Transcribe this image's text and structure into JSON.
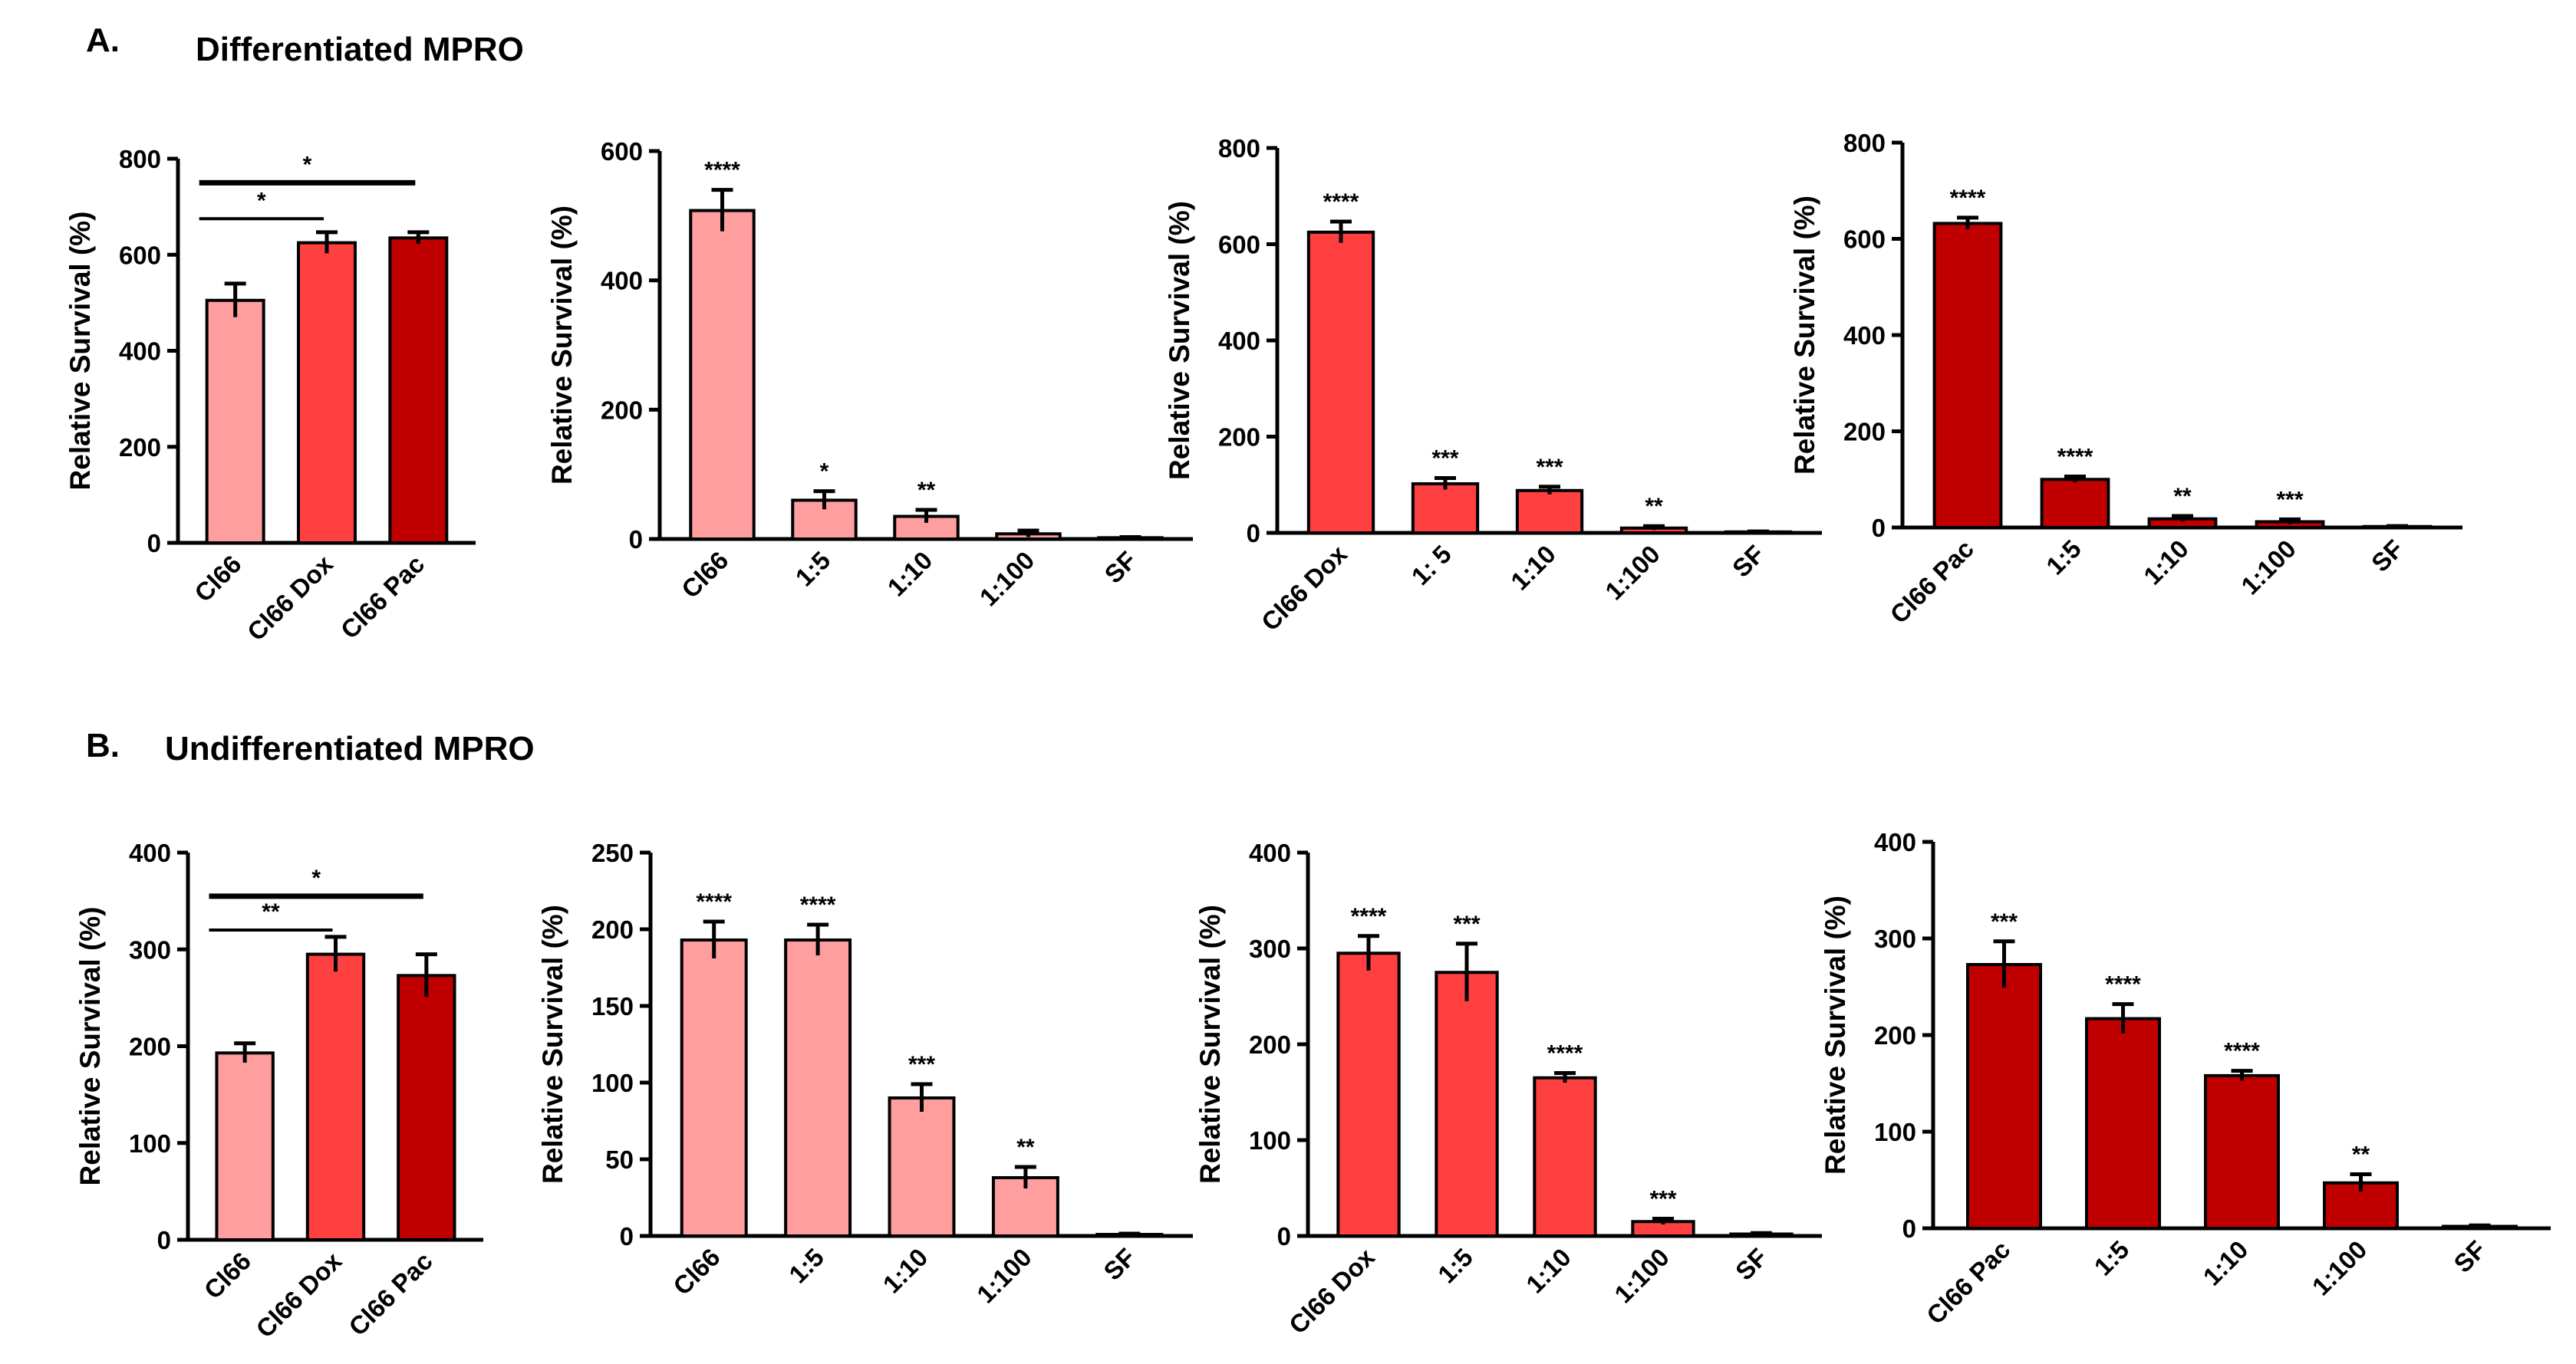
{
  "panels": [
    {
      "label": "A.",
      "title": "Differentiated  MPRO"
    },
    {
      "label": "B.",
      "title": "Undifferentiated  MPRO"
    }
  ],
  "colors": {
    "light": "#FF9E9E",
    "medium": "#FF4040",
    "dark": "#C00000",
    "stroke": "#000000"
  },
  "chart_data": [
    {
      "type": "bar",
      "panel": "A",
      "ylabel": "Relative Survival (%)",
      "ylim": [
        0,
        800
      ],
      "yticks": [
        0,
        200,
        400,
        600,
        800
      ],
      "categories": [
        "Cl66",
        "Cl66 Dox",
        "Cl66 Pac"
      ],
      "values": [
        505,
        625,
        635
      ],
      "errors": [
        35,
        22,
        12
      ],
      "colors": [
        "light",
        "medium",
        "dark"
      ],
      "sig": [
        "",
        "",
        ""
      ],
      "brackets": [
        {
          "from": 0,
          "to": 2,
          "y": 750,
          "label": "*"
        },
        {
          "from": 0,
          "to": 1,
          "y": 675,
          "label": "*"
        }
      ]
    },
    {
      "type": "bar",
      "panel": "A",
      "ylabel": "Relative Survival (%)",
      "ylim": [
        0,
        600
      ],
      "yticks": [
        0,
        200,
        400,
        600
      ],
      "categories": [
        "Cl66",
        "1:5",
        "1:10",
        "1:100",
        "SF"
      ],
      "values": [
        508,
        60,
        35,
        8,
        2
      ],
      "errors": [
        32,
        14,
        10,
        5,
        1
      ],
      "colors": [
        "light",
        "light",
        "light",
        "light",
        "light"
      ],
      "sig": [
        "****",
        "*",
        "**",
        "",
        ""
      ],
      "brackets": []
    },
    {
      "type": "bar",
      "panel": "A",
      "ylabel": "Relative Survival (%)",
      "ylim": [
        0,
        800
      ],
      "yticks": [
        0,
        200,
        400,
        600,
        800
      ],
      "categories": [
        "Cl66 Dox",
        "1: 5",
        "1:10",
        "1:100",
        "SF"
      ],
      "values": [
        625,
        102,
        88,
        10,
        2
      ],
      "errors": [
        22,
        12,
        8,
        4,
        1
      ],
      "colors": [
        "medium",
        "medium",
        "medium",
        "medium",
        "medium"
      ],
      "sig": [
        "****",
        "***",
        "***",
        "**",
        ""
      ],
      "brackets": []
    },
    {
      "type": "bar",
      "panel": "A",
      "ylabel": "Relative Survival (%)",
      "ylim": [
        0,
        800
      ],
      "yticks": [
        0,
        200,
        400,
        600,
        800
      ],
      "categories": [
        "Cl66 Pac",
        "1:5",
        "1:10",
        "1:100",
        "SF"
      ],
      "values": [
        632,
        100,
        18,
        12,
        2
      ],
      "errors": [
        12,
        6,
        6,
        5,
        1
      ],
      "colors": [
        "dark",
        "dark",
        "dark",
        "dark",
        "dark"
      ],
      "sig": [
        "****",
        "****",
        "**",
        "***",
        ""
      ],
      "brackets": []
    },
    {
      "type": "bar",
      "panel": "B",
      "ylabel": "Relative Survival (%)",
      "ylim": [
        0,
        400
      ],
      "yticks": [
        0,
        100,
        200,
        300,
        400
      ],
      "categories": [
        "Cl66",
        "Cl66 Dox",
        "Cl66 Pac"
      ],
      "values": [
        193,
        295,
        273
      ],
      "errors": [
        10,
        18,
        22
      ],
      "colors": [
        "light",
        "medium",
        "dark"
      ],
      "sig": [
        "",
        "",
        ""
      ],
      "brackets": [
        {
          "from": 0,
          "to": 2,
          "y": 355,
          "label": "*"
        },
        {
          "from": 0,
          "to": 1,
          "y": 320,
          "label": "**"
        }
      ]
    },
    {
      "type": "bar",
      "panel": "B",
      "ylabel": "Relative Survival (%)",
      "ylim": [
        0,
        250
      ],
      "yticks": [
        0,
        50,
        100,
        150,
        200,
        250
      ],
      "categories": [
        "Cl66",
        "1:5",
        "1:10",
        "1:100",
        "SF"
      ],
      "values": [
        193,
        193,
        90,
        38,
        1
      ],
      "errors": [
        12,
        10,
        9,
        7,
        0.5
      ],
      "colors": [
        "light",
        "light",
        "light",
        "light",
        "light"
      ],
      "sig": [
        "****",
        "****",
        "***",
        "**",
        ""
      ],
      "brackets": []
    },
    {
      "type": "bar",
      "panel": "B",
      "ylabel": "Relative Survival (%)",
      "ylim": [
        0,
        400
      ],
      "yticks": [
        0,
        100,
        200,
        300,
        400
      ],
      "categories": [
        "Cl66 Dox",
        "1:5",
        "1:10",
        "1:100",
        "SF"
      ],
      "values": [
        295,
        275,
        165,
        15,
        2
      ],
      "errors": [
        18,
        30,
        5,
        3,
        1
      ],
      "colors": [
        "medium",
        "medium",
        "medium",
        "medium",
        "medium"
      ],
      "sig": [
        "****",
        "***",
        "****",
        "***",
        ""
      ],
      "brackets": []
    },
    {
      "type": "bar",
      "panel": "B",
      "ylabel": "Relative Survival (%)",
      "ylim": [
        0,
        400
      ],
      "yticks": [
        0,
        100,
        200,
        300,
        400
      ],
      "categories": [
        "Cl66 Pac",
        "1:5",
        "1:10",
        "1:100",
        "SF"
      ],
      "values": [
        273,
        217,
        158,
        47,
        2
      ],
      "errors": [
        24,
        15,
        5,
        9,
        1
      ],
      "colors": [
        "dark",
        "dark",
        "dark",
        "dark",
        "dark"
      ],
      "sig": [
        "***",
        "****",
        "****",
        "**",
        ""
      ],
      "brackets": []
    }
  ]
}
